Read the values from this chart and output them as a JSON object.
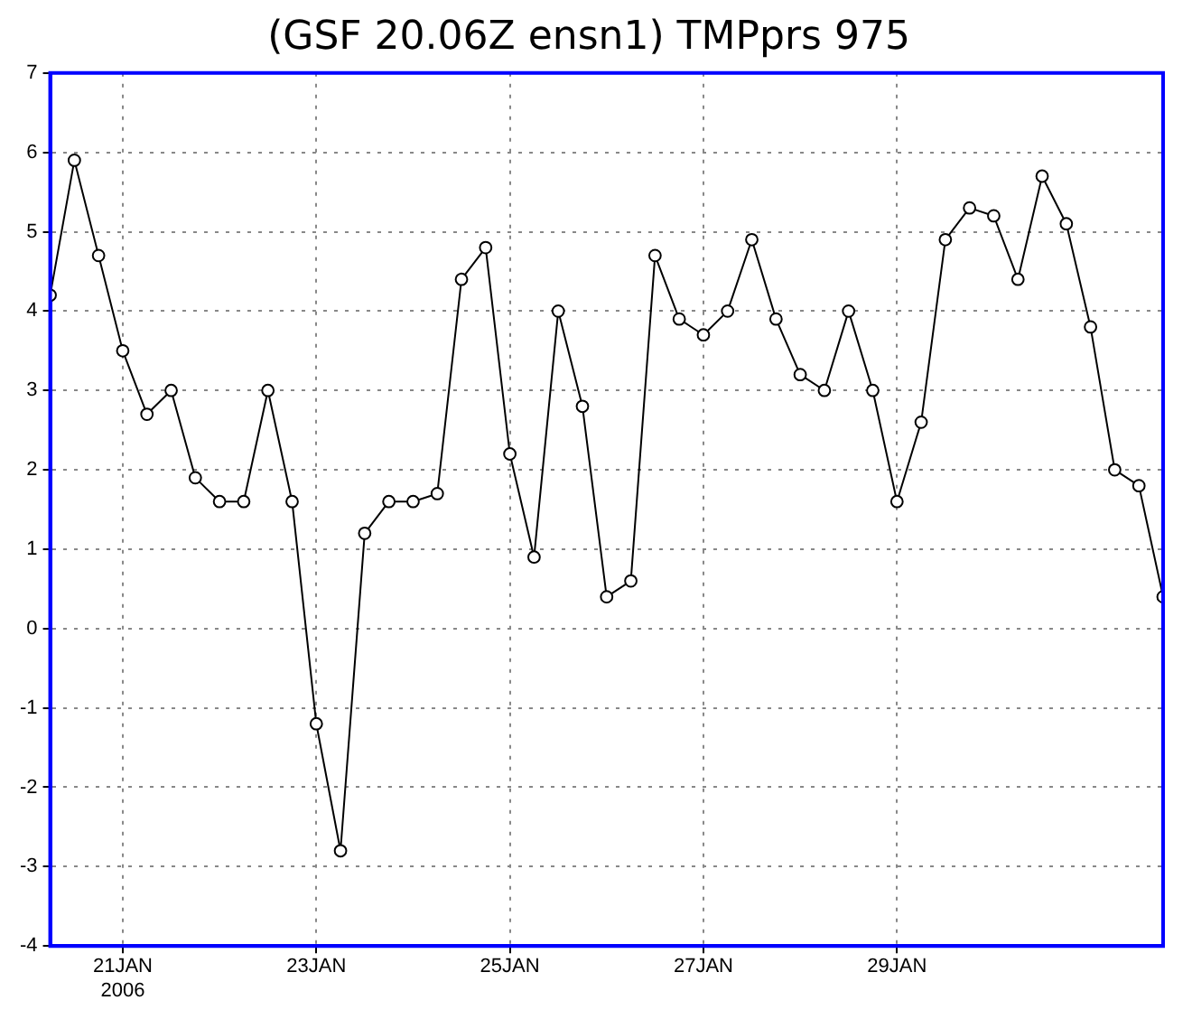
{
  "chart_data": {
    "type": "line",
    "title": "(GSF 20.06Z ensn1) TMPprs 975",
    "x": [
      "2006-01-20T06:00",
      "2006-01-20T12:00",
      "2006-01-20T18:00",
      "2006-01-21T00:00",
      "2006-01-21T06:00",
      "2006-01-21T12:00",
      "2006-01-21T18:00",
      "2006-01-22T00:00",
      "2006-01-22T06:00",
      "2006-01-22T12:00",
      "2006-01-22T18:00",
      "2006-01-23T00:00",
      "2006-01-23T06:00",
      "2006-01-23T12:00",
      "2006-01-23T18:00",
      "2006-01-24T00:00",
      "2006-01-24T06:00",
      "2006-01-24T12:00",
      "2006-01-24T18:00",
      "2006-01-25T00:00",
      "2006-01-25T06:00",
      "2006-01-25T12:00",
      "2006-01-25T18:00",
      "2006-01-26T00:00",
      "2006-01-26T06:00",
      "2006-01-26T12:00",
      "2006-01-26T18:00",
      "2006-01-27T00:00",
      "2006-01-27T06:00",
      "2006-01-27T12:00",
      "2006-01-27T18:00",
      "2006-01-28T00:00",
      "2006-01-28T06:00",
      "2006-01-28T12:00",
      "2006-01-28T18:00",
      "2006-01-29T00:00",
      "2006-01-29T06:00",
      "2006-01-29T12:00",
      "2006-01-29T18:00",
      "2006-01-30T00:00",
      "2006-01-30T06:00",
      "2006-01-30T12:00",
      "2006-01-30T18:00",
      "2006-01-31T00:00",
      "2006-01-31T06:00",
      "2006-01-31T12:00",
      "2006-01-31T18:00"
    ],
    "series": [
      {
        "color": "#000000",
        "values": [
          4.2,
          5.9,
          4.7,
          3.5,
          2.7,
          3.0,
          1.9,
          1.6,
          1.6,
          3.0,
          1.6,
          -1.2,
          -2.8,
          1.2,
          1.6,
          1.6,
          1.7,
          4.4,
          4.8,
          2.2,
          0.9,
          4.0,
          2.8,
          0.4,
          0.6,
          4.7,
          3.9,
          3.7,
          4.0,
          4.9,
          3.9,
          3.2,
          3.0,
          4.0,
          3.0,
          1.6,
          2.6,
          4.9,
          5.3,
          5.2,
          4.4,
          5.7,
          5.1,
          3.8,
          2.0,
          1.8,
          0.4
        ]
      }
    ],
    "xlim": [
      "2006-01-20T06:00",
      "2006-01-31T18:00"
    ],
    "xticks": [
      {
        "value": "2006-01-21",
        "label": "21JAN\n2006"
      },
      {
        "value": "2006-01-23",
        "label": "23JAN"
      },
      {
        "value": "2006-01-25",
        "label": "25JAN"
      },
      {
        "value": "2006-01-27",
        "label": "27JAN"
      },
      {
        "value": "2006-01-29",
        "label": "29JAN"
      }
    ],
    "ylim": [
      -4,
      7
    ],
    "yticks": [
      -4,
      -3,
      -2,
      -1,
      0,
      1,
      2,
      3,
      4,
      5,
      6,
      7
    ],
    "grid": true,
    "marker": "circle",
    "line_style": "solid",
    "legend": false
  }
}
